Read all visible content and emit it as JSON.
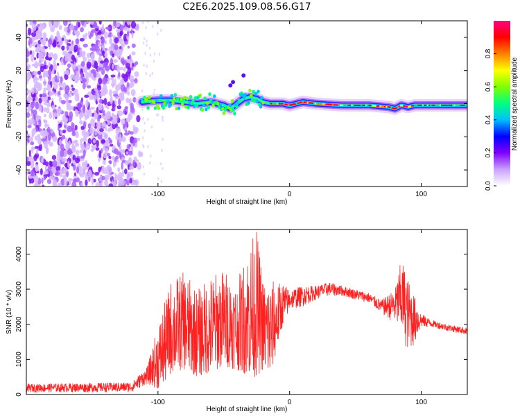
{
  "title": "C2E6.2025.109.08.56.G17",
  "chart_data": [
    {
      "type": "heatmap",
      "xlabel": "Height of straight line (km)",
      "ylabel": "Frequency (Hz)",
      "xlim": [
        -200,
        135
      ],
      "ylim": [
        -50,
        50
      ],
      "xticks": [
        -100,
        0,
        100
      ],
      "yticks": [
        -40,
        -20,
        0,
        20,
        40
      ],
      "noise_region": [
        -200,
        -112
      ],
      "ridge": {
        "x": [
          -112,
          -100,
          -90,
          -80,
          -70,
          -60,
          -50,
          -45,
          -40,
          -35,
          -30,
          -25,
          -20,
          -15,
          -10,
          -5,
          0,
          5,
          10,
          20,
          40,
          60,
          75,
          80,
          85,
          90,
          95,
          100,
          110,
          120,
          135
        ],
        "y": [
          1,
          2,
          2,
          1,
          0,
          1,
          -1,
          -3,
          0,
          3,
          4,
          3,
          1,
          0,
          0,
          0,
          -1,
          0,
          1,
          0,
          -1,
          -1,
          -2,
          -3,
          -1,
          -2,
          -1,
          -1,
          -1,
          -1,
          -1
        ]
      },
      "colorbar": {
        "label": "Normalized spectral amplitude",
        "range": [
          0,
          1
        ],
        "ticks": [
          0.0,
          0.2,
          0.4,
          0.6,
          0.8
        ],
        "tick_labels": [
          "0.0",
          "0.2",
          "0.4",
          "0.6",
          "0.8"
        ],
        "colors": [
          "#ffffff",
          "#c9a0ff",
          "#8000ff",
          "#0000ff",
          "#00c0ff",
          "#00ff80",
          "#80ff00",
          "#ffff00",
          "#ff8000",
          "#ff0000",
          "#ff0080"
        ]
      }
    },
    {
      "type": "line",
      "xlabel": "Height of straight line (km)",
      "ylabel": "SNR (10 * v/v)",
      "xlim": [
        -200,
        135
      ],
      "ylim": [
        0,
        4700
      ],
      "xticks": [
        -100,
        0,
        100
      ],
      "yticks": [
        0,
        1000,
        2000,
        3000,
        4000
      ],
      "color": "#ff2020",
      "envelope": {
        "x": [
          -200,
          -120,
          -108,
          -100,
          -95,
          -90,
          -80,
          -70,
          -60,
          -50,
          -40,
          -30,
          -25,
          -20,
          -15,
          -10,
          -5,
          0,
          10,
          20,
          30,
          40,
          50,
          60,
          70,
          80,
          85,
          90,
          95,
          100,
          110,
          120,
          135
        ],
        "low": [
          60,
          60,
          300,
          150,
          300,
          600,
          700,
          500,
          600,
          800,
          700,
          500,
          500,
          700,
          400,
          1200,
          2000,
          2400,
          2500,
          2700,
          2800,
          2800,
          2700,
          2600,
          2300,
          2000,
          1600,
          1200,
          1400,
          1900,
          1900,
          1800,
          1700
        ],
        "high": [
          300,
          350,
          800,
          2000,
          2600,
          3300,
          3500,
          3000,
          3400,
          3600,
          3200,
          4400,
          4700,
          3300,
          3300,
          3200,
          3200,
          3000,
          3100,
          3100,
          3200,
          3100,
          3000,
          2900,
          2700,
          3000,
          3900,
          3300,
          2800,
          2300,
          2100,
          2000,
          1900
        ]
      }
    }
  ]
}
